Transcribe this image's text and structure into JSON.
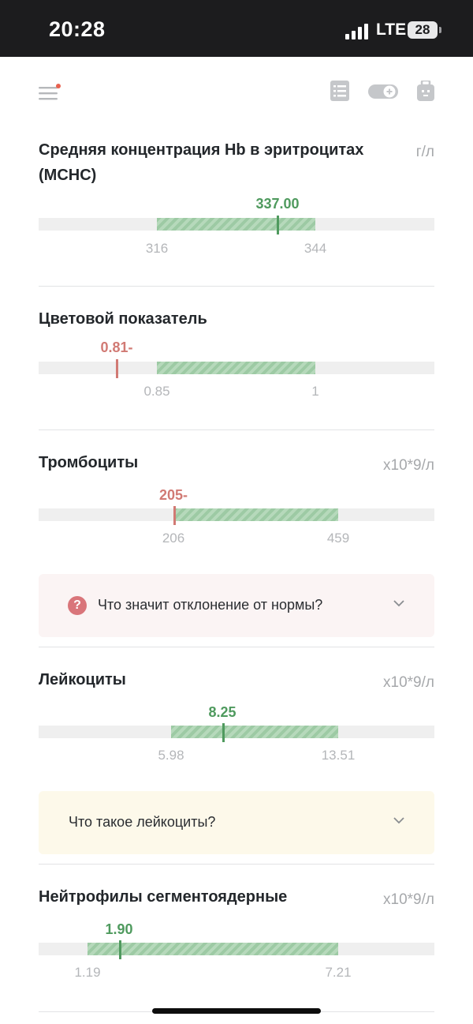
{
  "status_bar": {
    "time": "20:28",
    "network": "LTE",
    "battery": "28"
  },
  "colors": {
    "normal_value": "#4f9a5e",
    "abnormal_value": "#d17a74",
    "norm_fill": "#a9d2af",
    "track": "#efefef"
  },
  "toolbar": {
    "icons": [
      "menu-icon",
      "list-icon",
      "toggle-add-icon",
      "medkit-icon"
    ],
    "menu_has_notification": true
  },
  "metrics": [
    {
      "title_line1": "Средняя концентрация Hb в эритроцитах",
      "title_line2": "(MCHC)",
      "unit": "г/л",
      "value": "337.00",
      "low": "316",
      "high": "344",
      "status": "normal"
    },
    {
      "title_line1": "Цветовой показатель",
      "unit": "",
      "value": "0.81-",
      "low": "0.85",
      "high": "1",
      "status": "low"
    },
    {
      "title_line1": "Тромбоциты",
      "unit": "x10*9/л",
      "value": "205-",
      "low": "206",
      "high": "459",
      "status": "low"
    },
    {
      "title_line1": "Лейкоциты",
      "unit": "x10*9/л",
      "value": "8.25",
      "low": "5.98",
      "high": "13.51",
      "status": "normal"
    },
    {
      "title_line1": "Нейтрофилы сегментоядерные",
      "unit": "x10*9/л",
      "value": "1.90",
      "low": "1.19",
      "high": "7.21",
      "status": "normal"
    }
  ],
  "info_boxes": [
    {
      "text": "Что значит отклонение от нормы?",
      "icon": "question-icon",
      "background": "#fbf4f4"
    },
    {
      "text": "Что такое лейкоциты?",
      "background": "#fdf9ea"
    }
  ]
}
